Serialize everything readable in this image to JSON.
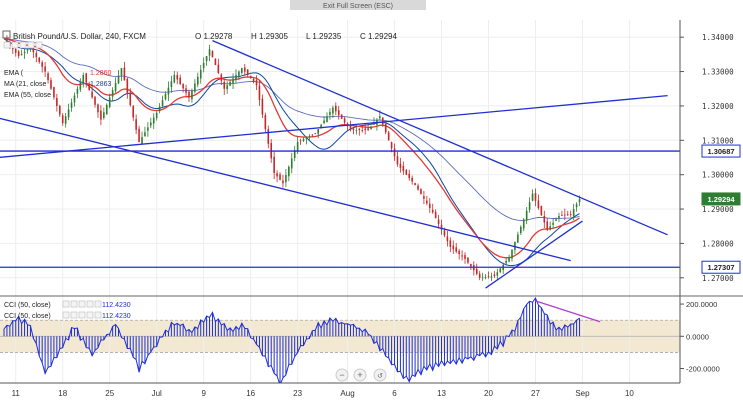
{
  "toolbar": {
    "exit_label": "Exit Full Screen (ESC)"
  },
  "header": {
    "symbol": "British Pound/U.S. Dollar, 240, FXCM",
    "o": "O 1.29278",
    "h": "H 1.29305",
    "l": "L 1.29235",
    "c": "C 1.29294",
    "legend": [
      {
        "label": "EMA (",
        "value": "1.2860",
        "color": "#e53935"
      },
      {
        "label": "MA (21, close",
        "value": "1.2863",
        "color": "#0d47a1"
      },
      {
        "label": "EMA (55, close",
        "value": "",
        "color": "#5c6bc0"
      }
    ]
  },
  "colors": {
    "up": "#2e7d32",
    "down": "#c62828",
    "trend": "#1f2fd0",
    "ema": "#e53935",
    "ma": "#0d47a1",
    "ema55": "#5c6bc0",
    "cci": "#1f2fd0",
    "band": "#f3e9d2",
    "divergence": "#b040d0"
  },
  "chart_data": {
    "type": "line",
    "price_axis": {
      "ticks": [
        "1.34000",
        "1.33000",
        "1.32000",
        "1.31000",
        "1.30000",
        "1.29000",
        "1.28000",
        "1.27000"
      ],
      "tick_values": [
        1.34,
        1.33,
        1.32,
        1.31,
        1.3,
        1.29,
        1.28,
        1.27
      ],
      "range": [
        1.2647,
        1.345
      ]
    },
    "price_badges": [
      {
        "label": "1.30687",
        "value": 1.30687,
        "style": "outline"
      },
      {
        "label": "1.29294",
        "value": 1.29294,
        "style": "green"
      },
      {
        "label": "1.27307",
        "value": 1.27307,
        "style": "outline"
      }
    ],
    "time_axis": {
      "labels": [
        "11",
        "18",
        "25",
        "Jul",
        "9",
        "16",
        "23",
        "Aug",
        "6",
        "13",
        "20",
        "27",
        "Sep",
        "10"
      ],
      "bars": [
        4,
        20,
        36,
        52,
        68,
        84,
        100,
        117,
        133,
        149,
        165,
        181,
        197,
        213
      ],
      "total_bars": 220
    },
    "key_points": [
      {
        "bar": 0,
        "price": 1.3395
      },
      {
        "bar": 5,
        "price": 1.3345
      },
      {
        "bar": 9,
        "price": 1.337
      },
      {
        "bar": 14,
        "price": 1.33
      },
      {
        "bar": 20,
        "price": 1.315
      },
      {
        "bar": 27,
        "price": 1.329
      },
      {
        "bar": 33,
        "price": 1.316
      },
      {
        "bar": 40,
        "price": 1.331
      },
      {
        "bar": 46,
        "price": 1.3095
      },
      {
        "bar": 52,
        "price": 1.318
      },
      {
        "bar": 58,
        "price": 1.329
      },
      {
        "bar": 63,
        "price": 1.3225
      },
      {
        "bar": 70,
        "price": 1.3365
      },
      {
        "bar": 75,
        "price": 1.325
      },
      {
        "bar": 81,
        "price": 1.331
      },
      {
        "bar": 86,
        "price": 1.326
      },
      {
        "bar": 92,
        "price": 1.3005
      },
      {
        "bar": 95,
        "price": 1.2975
      },
      {
        "bar": 100,
        "price": 1.3095
      },
      {
        "bar": 106,
        "price": 1.312
      },
      {
        "bar": 112,
        "price": 1.3195
      },
      {
        "bar": 118,
        "price": 1.313
      },
      {
        "bar": 124,
        "price": 1.313
      },
      {
        "bar": 128,
        "price": 1.317
      },
      {
        "bar": 134,
        "price": 1.303
      },
      {
        "bar": 140,
        "price": 1.297
      },
      {
        "bar": 146,
        "price": 1.289
      },
      {
        "bar": 152,
        "price": 1.279
      },
      {
        "bar": 157,
        "price": 1.2755
      },
      {
        "bar": 162,
        "price": 1.27
      },
      {
        "bar": 167,
        "price": 1.2705
      },
      {
        "bar": 172,
        "price": 1.276
      },
      {
        "bar": 177,
        "price": 1.287
      },
      {
        "bar": 180,
        "price": 1.2945
      },
      {
        "bar": 185,
        "price": 1.284
      },
      {
        "bar": 189,
        "price": 1.288
      },
      {
        "bar": 193,
        "price": 1.2885
      },
      {
        "bar": 196,
        "price": 1.2929
      }
    ],
    "drawings": [
      {
        "kind": "trendline",
        "from": {
          "bar": 71,
          "price": 1.339
        },
        "to": {
          "bar": 226,
          "price": 1.2825
        }
      },
      {
        "kind": "trendline",
        "from": {
          "bar": -2,
          "price": 1.305
        },
        "to": {
          "bar": 226,
          "price": 1.323
        }
      },
      {
        "kind": "trendline",
        "from": {
          "bar": -2,
          "price": 1.3165
        },
        "to": {
          "bar": 193,
          "price": 1.275
        }
      },
      {
        "kind": "trendline",
        "from": {
          "bar": 164,
          "price": 1.267
        },
        "to": {
          "bar": 197,
          "price": 1.2865
        }
      },
      {
        "kind": "horizontal",
        "price": 1.30687
      },
      {
        "kind": "horizontal",
        "price": 1.27307
      }
    ],
    "cci": {
      "header_label": "CCI (50, close)",
      "value": "112.4230",
      "ticks": [
        "200.0000",
        "0.0000",
        "-200.0000"
      ],
      "tick_values": [
        200,
        0,
        -200
      ],
      "range": [
        -290,
        250
      ],
      "band": [
        -100,
        100
      ],
      "key_points": [
        {
          "bar": 0,
          "value": 50
        },
        {
          "bar": 5,
          "value": 110
        },
        {
          "bar": 9,
          "value": 60
        },
        {
          "bar": 14,
          "value": -230
        },
        {
          "bar": 18,
          "value": -120
        },
        {
          "bar": 24,
          "value": 60
        },
        {
          "bar": 30,
          "value": -120
        },
        {
          "bar": 38,
          "value": 80
        },
        {
          "bar": 46,
          "value": -200
        },
        {
          "bar": 52,
          "value": -40
        },
        {
          "bar": 58,
          "value": 90
        },
        {
          "bar": 64,
          "value": 30
        },
        {
          "bar": 70,
          "value": 140
        },
        {
          "bar": 76,
          "value": 40
        },
        {
          "bar": 82,
          "value": 60
        },
        {
          "bar": 88,
          "value": -100
        },
        {
          "bar": 94,
          "value": -290
        },
        {
          "bar": 100,
          "value": -100
        },
        {
          "bar": 106,
          "value": 60
        },
        {
          "bar": 112,
          "value": 100
        },
        {
          "bar": 118,
          "value": 70
        },
        {
          "bar": 124,
          "value": 20
        },
        {
          "bar": 130,
          "value": -120
        },
        {
          "bar": 137,
          "value": -270
        },
        {
          "bar": 143,
          "value": -210
        },
        {
          "bar": 150,
          "value": -160
        },
        {
          "bar": 156,
          "value": -150
        },
        {
          "bar": 162,
          "value": -120
        },
        {
          "bar": 166,
          "value": -90
        },
        {
          "bar": 170,
          "value": -40
        },
        {
          "bar": 174,
          "value": 40
        },
        {
          "bar": 178,
          "value": 200
        },
        {
          "bar": 181,
          "value": 230
        },
        {
          "bar": 184,
          "value": 150
        },
        {
          "bar": 188,
          "value": 40
        },
        {
          "bar": 192,
          "value": 60
        },
        {
          "bar": 196,
          "value": 112.423
        }
      ],
      "divergence": {
        "from": {
          "bar": 181,
          "value": 220
        },
        "to": {
          "bar": 203,
          "value": 90
        }
      }
    },
    "xlabel": "",
    "ylabel": ""
  }
}
